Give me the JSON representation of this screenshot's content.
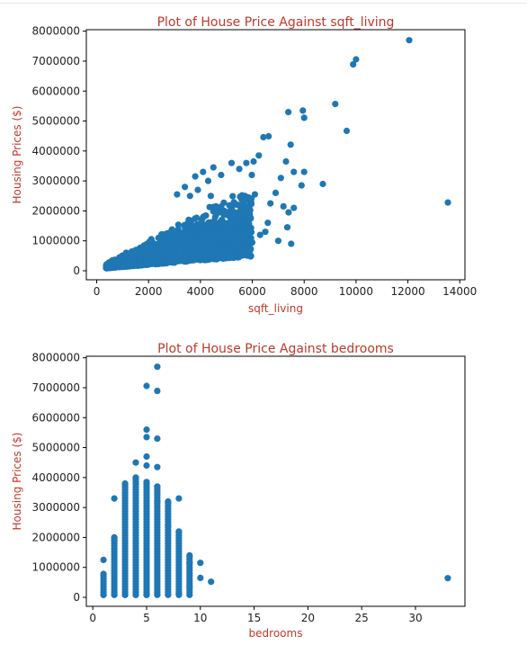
{
  "chart_data": [
    {
      "type": "scatter",
      "title": "Plot of House Price Against sqft_living",
      "xlabel": "sqft_living",
      "ylabel": "Housing Prices ($)",
      "xlim": [
        -400,
        14200
      ],
      "ylim": [
        -300000,
        8050000
      ],
      "xticks": [
        0,
        2000,
        4000,
        6000,
        8000,
        10000,
        12000,
        14000
      ],
      "xtick_labels": [
        "0",
        "2000",
        "4000",
        "6000",
        "8000",
        "10000",
        "12000",
        "14000"
      ],
      "yticks": [
        0,
        1000000,
        2000000,
        3000000,
        4000000,
        5000000,
        6000000,
        7000000,
        8000000
      ],
      "ytick_labels": [
        "0",
        "1000000",
        "2000000",
        "3000000",
        "4000000",
        "5000000",
        "6000000",
        "7000000",
        "8000000"
      ],
      "grid": false,
      "color": "#1f77b4",
      "points": [
        [
          12050,
          7700000
        ],
        [
          13540,
          2280000
        ],
        [
          10000,
          7060000
        ],
        [
          9890,
          6890000
        ],
        [
          9200,
          5570000
        ],
        [
          9640,
          4670000
        ],
        [
          7950,
          5350000
        ],
        [
          7390,
          5300000
        ],
        [
          8000,
          5110000
        ],
        [
          6630,
          4490000
        ],
        [
          6430,
          4460000
        ],
        [
          7480,
          4210000
        ],
        [
          6250,
          3850000
        ],
        [
          6050,
          3650000
        ],
        [
          5770,
          3600000
        ],
        [
          5980,
          3200000
        ],
        [
          5500,
          3400000
        ],
        [
          4800,
          3200000
        ],
        [
          5200,
          3600000
        ],
        [
          7300,
          3650000
        ],
        [
          7100,
          3100000
        ],
        [
          7600,
          3300000
        ],
        [
          8000,
          3300000
        ],
        [
          8720,
          2900000
        ],
        [
          7900,
          2850000
        ],
        [
          6900,
          2600000
        ],
        [
          6700,
          2250000
        ],
        [
          7200,
          2150000
        ],
        [
          7600,
          2100000
        ],
        [
          6100,
          2550000
        ],
        [
          5600,
          2050000
        ],
        [
          5900,
          1850000
        ],
        [
          7350,
          1450000
        ],
        [
          7000,
          1000000
        ],
        [
          6500,
          1300000
        ],
        [
          7500,
          900000
        ],
        [
          6300,
          1200000
        ],
        [
          6000,
          950000
        ],
        [
          6600,
          1600000
        ],
        [
          7400,
          1950000
        ],
        [
          5200,
          1550000
        ],
        [
          5800,
          1450000
        ],
        [
          5500,
          1000000
        ],
        [
          5000,
          800000
        ],
        [
          4400,
          2500000
        ],
        [
          4600,
          2150000
        ],
        [
          3900,
          2700000
        ],
        [
          3600,
          2500000
        ],
        [
          4100,
          3300000
        ],
        [
          4500,
          3450000
        ],
        [
          4300,
          3000000
        ],
        [
          3800,
          3150000
        ],
        [
          3400,
          2800000
        ],
        [
          3100,
          2550000
        ]
      ]
    },
    {
      "type": "scatter",
      "title": "Plot of House Price Against bedrooms",
      "xlabel": "bedrooms",
      "ylabel": "Housing Prices ($)",
      "xlim": [
        -0.6,
        34.6
      ],
      "ylim": [
        -300000,
        8050000
      ],
      "xticks": [
        0,
        5,
        10,
        15,
        20,
        25,
        30
      ],
      "xtick_labels": [
        "0",
        "5",
        "10",
        "15",
        "20",
        "25",
        "30"
      ],
      "yticks": [
        0,
        1000000,
        2000000,
        3000000,
        4000000,
        5000000,
        6000000,
        7000000,
        8000000
      ],
      "ytick_labels": [
        "0",
        "1000000",
        "2000000",
        "3000000",
        "4000000",
        "5000000",
        "6000000",
        "7000000",
        "8000000"
      ],
      "grid": false,
      "color": "#1f77b4",
      "points": [
        [
          1,
          1250000
        ],
        [
          1,
          780000
        ],
        [
          1,
          80000
        ],
        [
          2,
          3300000
        ],
        [
          2,
          2000000
        ],
        [
          2,
          1900000
        ],
        [
          2,
          90000
        ],
        [
          3,
          3800000
        ],
        [
          3,
          3500000
        ],
        [
          3,
          80000
        ],
        [
          4,
          4500000
        ],
        [
          4,
          4000000
        ],
        [
          4,
          3800000
        ],
        [
          4,
          80000
        ],
        [
          5,
          7060000
        ],
        [
          5,
          5600000
        ],
        [
          5,
          5350000
        ],
        [
          5,
          4700000
        ],
        [
          5,
          4400000
        ],
        [
          5,
          3850000
        ],
        [
          5,
          80000
        ],
        [
          6,
          7700000
        ],
        [
          6,
          6890000
        ],
        [
          6,
          5300000
        ],
        [
          6,
          4350000
        ],
        [
          6,
          3700000
        ],
        [
          6,
          3200000
        ],
        [
          6,
          90000
        ],
        [
          7,
          3200000
        ],
        [
          7,
          2400000
        ],
        [
          7,
          90000
        ],
        [
          8,
          3300000
        ],
        [
          8,
          2200000
        ],
        [
          8,
          100000
        ],
        [
          9,
          1400000
        ],
        [
          9,
          1150000
        ],
        [
          9,
          350000
        ],
        [
          10,
          1150000
        ],
        [
          10,
          650000
        ],
        [
          11,
          520000
        ],
        [
          33,
          640000
        ]
      ],
      "columns": [
        {
          "x": 1,
          "top": 780000
        },
        {
          "x": 2,
          "top": 2000000
        },
        {
          "x": 3,
          "top": 3800000
        },
        {
          "x": 4,
          "top": 4000000
        },
        {
          "x": 5,
          "top": 3850000
        },
        {
          "x": 6,
          "top": 3700000
        },
        {
          "x": 7,
          "top": 3200000
        },
        {
          "x": 8,
          "top": 2200000
        },
        {
          "x": 9,
          "top": 1400000
        }
      ]
    }
  ]
}
